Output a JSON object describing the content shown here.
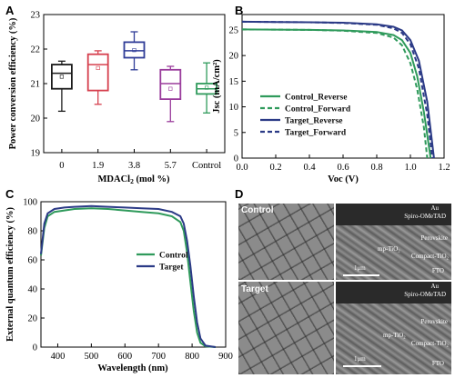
{
  "panels": {
    "A": "A",
    "B": "B",
    "C": "C",
    "D": "D"
  },
  "colors": {
    "black": "#1a1a1a",
    "red": "#d6404e",
    "blue": "#2f3c97",
    "purple": "#9a3c9c",
    "green": "#2f9a5b",
    "navy": "#2b3a86"
  },
  "chart_data": [
    {
      "type": "box",
      "panel": "A",
      "ylabel": "Power conversion efficiency (%)",
      "xlabel": "MDACl₂ (mol %)",
      "categories": [
        "0",
        "1.9",
        "3.8",
        "5.7",
        "Control"
      ],
      "ylim": [
        19,
        23
      ],
      "yticks": [
        "19",
        "20",
        "21",
        "22",
        "23"
      ],
      "boxes": [
        {
          "name": "0",
          "min": 20.2,
          "q1": 20.85,
          "median": 21.3,
          "q3": 21.55,
          "max": 21.65,
          "mean": 21.2,
          "color": "#1a1a1a"
        },
        {
          "name": "1.9",
          "min": 20.4,
          "q1": 20.8,
          "median": 21.55,
          "q3": 21.85,
          "max": 21.95,
          "mean": 21.45,
          "color": "#d6404e"
        },
        {
          "name": "3.8",
          "min": 21.4,
          "q1": 21.75,
          "median": 21.95,
          "q3": 22.2,
          "max": 22.5,
          "mean": 21.97,
          "color": "#2f3c97"
        },
        {
          "name": "5.7",
          "min": 19.9,
          "q1": 20.55,
          "median": 21.0,
          "q3": 21.4,
          "max": 21.5,
          "mean": 20.85,
          "color": "#9a3c9c"
        },
        {
          "name": "Control",
          "min": 20.15,
          "q1": 20.7,
          "median": 20.85,
          "q3": 21.0,
          "max": 21.6,
          "mean": 20.88,
          "color": "#2f9a5b"
        }
      ]
    },
    {
      "type": "line",
      "panel": "B",
      "xlabel": "Voc (V)",
      "ylabel": "Jsc (mA/cm²)",
      "xlim": [
        0,
        1.2
      ],
      "ylim": [
        0,
        28
      ],
      "xticks": [
        "0.0",
        "0.2",
        "0.4",
        "0.6",
        "0.8",
        "1.0",
        "1.2"
      ],
      "yticks": [
        "0",
        "5",
        "10",
        "15",
        "20",
        "25"
      ],
      "legend_position": "lower-left",
      "series": [
        {
          "name": "Control_Reverse",
          "color": "#2f9a5b",
          "style": "solid",
          "jsc": 25.1,
          "voc": 1.12,
          "points": [
            [
              0,
              25.1
            ],
            [
              0.2,
              25.05
            ],
            [
              0.4,
              25.0
            ],
            [
              0.6,
              24.9
            ],
            [
              0.8,
              24.6
            ],
            [
              0.9,
              24.0
            ],
            [
              0.95,
              23.0
            ],
            [
              1.0,
              20.5
            ],
            [
              1.04,
              16.0
            ],
            [
              1.08,
              9.0
            ],
            [
              1.12,
              0
            ]
          ]
        },
        {
          "name": "Control_Forward",
          "color": "#2f9a5b",
          "style": "dashed",
          "jsc": 25.1,
          "voc": 1.1,
          "points": [
            [
              0,
              25.1
            ],
            [
              0.2,
              25.05
            ],
            [
              0.4,
              25.0
            ],
            [
              0.6,
              24.85
            ],
            [
              0.8,
              24.4
            ],
            [
              0.9,
              23.5
            ],
            [
              0.95,
              22.0
            ],
            [
              1.0,
              18.5
            ],
            [
              1.04,
              13.5
            ],
            [
              1.08,
              6.0
            ],
            [
              1.1,
              0
            ]
          ]
        },
        {
          "name": "Target_Reverse",
          "color": "#2b3a86",
          "style": "solid",
          "jsc": 26.6,
          "voc": 1.14,
          "points": [
            [
              0,
              26.6
            ],
            [
              0.2,
              26.55
            ],
            [
              0.4,
              26.5
            ],
            [
              0.6,
              26.4
            ],
            [
              0.8,
              26.1
            ],
            [
              0.9,
              25.6
            ],
            [
              0.95,
              24.9
            ],
            [
              1.0,
              23.0
            ],
            [
              1.05,
              19.0
            ],
            [
              1.1,
              11.0
            ],
            [
              1.14,
              0
            ]
          ]
        },
        {
          "name": "Target_Forward",
          "color": "#2b3a86",
          "style": "dashed",
          "jsc": 26.6,
          "voc": 1.13,
          "points": [
            [
              0,
              26.6
            ],
            [
              0.2,
              26.55
            ],
            [
              0.4,
              26.5
            ],
            [
              0.6,
              26.35
            ],
            [
              0.8,
              26.0
            ],
            [
              0.9,
              25.3
            ],
            [
              0.95,
              24.4
            ],
            [
              1.0,
              22.2
            ],
            [
              1.05,
              17.5
            ],
            [
              1.1,
              8.5
            ],
            [
              1.13,
              0
            ]
          ]
        }
      ]
    },
    {
      "type": "line",
      "panel": "C",
      "xlabel": "Wavelength (nm)",
      "ylabel": "External quantum efficiency (%)",
      "xlim": [
        350,
        900
      ],
      "ylim": [
        0,
        100
      ],
      "xticks": [
        "400",
        "500",
        "600",
        "700",
        "800",
        "900"
      ],
      "yticks": [
        "0",
        "20",
        "40",
        "60",
        "80",
        "100"
      ],
      "legend_position": "middle-center",
      "series": [
        {
          "name": "Control",
          "color": "#2f9a5b",
          "points": [
            [
              350,
              63
            ],
            [
              360,
              82
            ],
            [
              370,
              90
            ],
            [
              390,
              93
            ],
            [
              420,
              94
            ],
            [
              450,
              95
            ],
            [
              500,
              95.5
            ],
            [
              550,
              95
            ],
            [
              600,
              94
            ],
            [
              650,
              93
            ],
            [
              700,
              92
            ],
            [
              740,
              90
            ],
            [
              765,
              86
            ],
            [
              775,
              80
            ],
            [
              785,
              65
            ],
            [
              795,
              45
            ],
            [
              805,
              25
            ],
            [
              815,
              10
            ],
            [
              825,
              3
            ],
            [
              840,
              0.5
            ],
            [
              870,
              0
            ]
          ]
        },
        {
          "name": "Target",
          "color": "#2b3a86",
          "points": [
            [
              350,
              64
            ],
            [
              360,
              85
            ],
            [
              370,
              92
            ],
            [
              390,
              95
            ],
            [
              420,
              96
            ],
            [
              450,
              96.5
            ],
            [
              500,
              97
            ],
            [
              550,
              96.5
            ],
            [
              600,
              96
            ],
            [
              650,
              95.5
            ],
            [
              700,
              95
            ],
            [
              740,
              93
            ],
            [
              765,
              90
            ],
            [
              775,
              85
            ],
            [
              785,
              73
            ],
            [
              795,
              56
            ],
            [
              805,
              35
            ],
            [
              815,
              17
            ],
            [
              825,
              6
            ],
            [
              840,
              1
            ],
            [
              870,
              0
            ]
          ]
        }
      ]
    }
  ],
  "panelD": {
    "control_label": "Control",
    "target_label": "Target",
    "layers": [
      "Au",
      "Spiro-OMeTAD",
      "Perovskite",
      "mp-TiO₂",
      "Compact-TiO₂",
      "FTO"
    ],
    "scale": "1μm"
  }
}
